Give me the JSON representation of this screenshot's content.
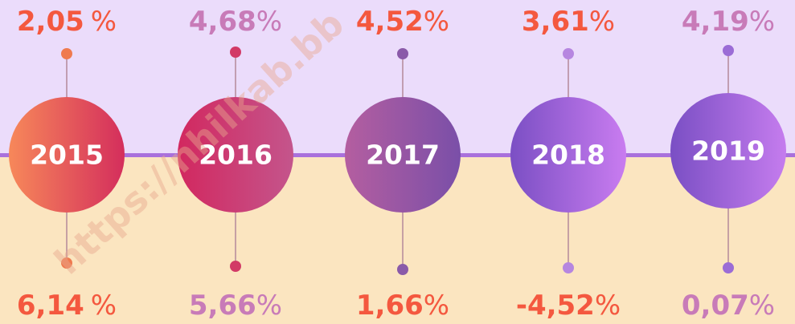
{
  "watermark": "https://nhilkab.bb",
  "items": [
    {
      "year": "2015",
      "top_value": "2,05",
      "top_unit": "%",
      "bottom_value": "6,14",
      "bottom_unit": "%"
    },
    {
      "year": "2016",
      "top_value": "4,68",
      "top_unit": "%",
      "bottom_value": "5,66",
      "bottom_unit": "%"
    },
    {
      "year": "2017",
      "top_value": "4,52",
      "top_unit": "%",
      "bottom_value": "1,66",
      "bottom_unit": "%"
    },
    {
      "year": "2018",
      "top_value": "3,61",
      "top_unit": "%",
      "bottom_value": "-4,52",
      "bottom_unit": "%"
    },
    {
      "year": "2019",
      "top_value": "4,19",
      "top_unit": "%",
      "bottom_value": "0,07",
      "bottom_unit": "%"
    }
  ]
}
